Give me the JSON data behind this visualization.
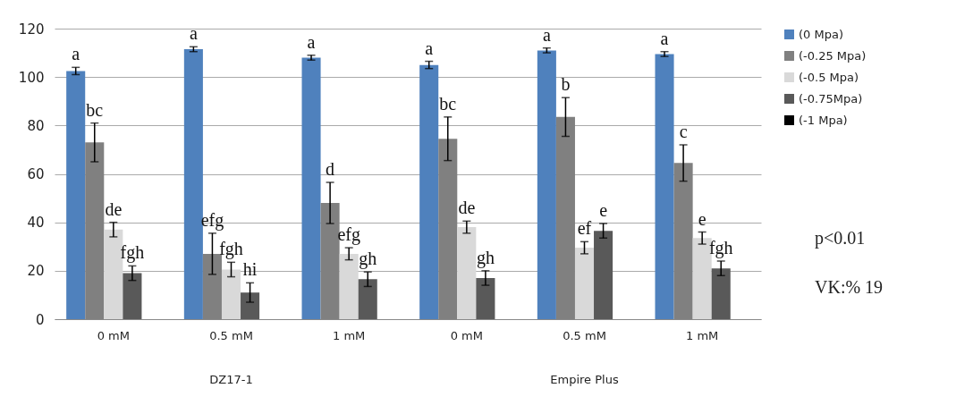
{
  "chart_data": {
    "type": "bar",
    "categories": [
      "0 mM",
      "0.5 mM",
      "1 mM",
      "0 mM",
      "0.5 mM",
      "1 mM"
    ],
    "series": [
      {
        "name": "(0 Mpa)",
        "color": "#4f81bd",
        "values": [
          102.5,
          111.5,
          108,
          105,
          111,
          109.5
        ],
        "errors": [
          1.5,
          1,
          1,
          1.5,
          1,
          1
        ],
        "value_labels": [
          "a",
          "a",
          "a",
          "a",
          "a",
          "a"
        ]
      },
      {
        "name": "(-0.25 Mpa)",
        "color": "#808080",
        "values": [
          73,
          27,
          48,
          74.5,
          83.5,
          64.5
        ],
        "errors": [
          8,
          8.5,
          8.5,
          9,
          8,
          7.5
        ],
        "value_labels": [
          "bc",
          "efg",
          "d",
          "bc",
          "b",
          "c"
        ]
      },
      {
        "name": "(-0.5 Mpa)",
        "color": "#d9d9d9",
        "values": [
          37,
          20.5,
          27,
          38,
          29.5,
          33.5
        ],
        "errors": [
          3,
          3,
          2.5,
          2.5,
          2.5,
          2.5
        ],
        "value_labels": [
          "de",
          "fgh",
          "efg",
          "de",
          "ef",
          "e"
        ]
      },
      {
        "name": "(-0.75Mpa)",
        "color": "#595959",
        "values": [
          19,
          11,
          16.5,
          17,
          36.5,
          21
        ],
        "errors": [
          3,
          4,
          3,
          3,
          3,
          3
        ],
        "value_labels": [
          "fgh",
          "hi",
          "gh",
          "gh",
          "e",
          "fgh"
        ]
      },
      {
        "name": "(-1 Mpa)",
        "color": "#000000",
        "values": [
          null,
          null,
          null,
          null,
          null,
          null
        ]
      }
    ],
    "ylim": [
      0,
      120
    ],
    "yticks": [
      0,
      20,
      40,
      60,
      80,
      100,
      120
    ],
    "grid": "y",
    "legend": "right",
    "annotations": [
      "DZ17-1",
      "Empire Plus",
      "p<0.01",
      "VK:% 19"
    ]
  }
}
